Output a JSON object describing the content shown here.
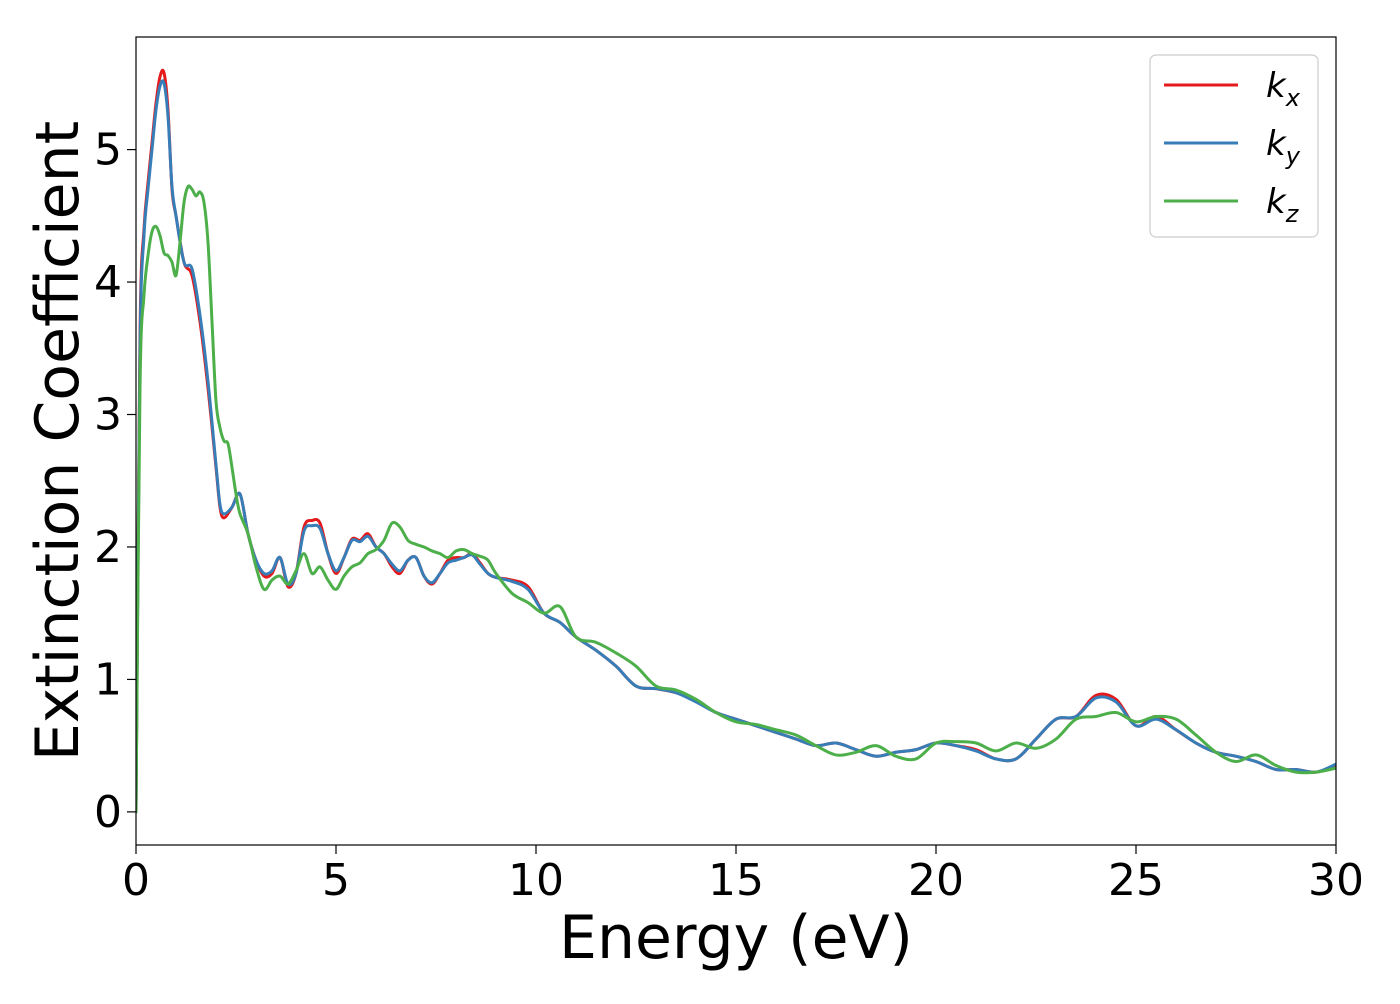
{
  "chart_data": {
    "type": "line",
    "title": "",
    "xlabel": "Energy (eV)",
    "ylabel": "Extinction Coefficient",
    "xlim": [
      0,
      30
    ],
    "ylim": [
      -0.25,
      5.85
    ],
    "xticks": [
      0,
      5,
      10,
      15,
      20,
      25,
      30
    ],
    "yticks": [
      0,
      1,
      2,
      3,
      4,
      5
    ],
    "grid": false,
    "legend_position": "top-right",
    "series": [
      {
        "name": "k",
        "subscript": "x",
        "color": "#e41a1c",
        "x": [
          0,
          0.1,
          0.2,
          0.3,
          0.4,
          0.5,
          0.6,
          0.7,
          0.8,
          0.9,
          1.0,
          1.2,
          1.4,
          1.6,
          1.8,
          2.0,
          2.1,
          2.2,
          2.4,
          2.6,
          2.8,
          3.0,
          3.2,
          3.4,
          3.6,
          3.8,
          4.0,
          4.2,
          4.4,
          4.6,
          4.8,
          5.0,
          5.2,
          5.4,
          5.6,
          5.8,
          6.0,
          6.2,
          6.4,
          6.6,
          6.8,
          7.0,
          7.2,
          7.4,
          7.6,
          7.8,
          8.0,
          8.2,
          8.4,
          8.6,
          8.8,
          9.0,
          9.4,
          9.8,
          10.2,
          10.6,
          11.0,
          11.5,
          12.0,
          12.5,
          13.0,
          13.5,
          14.0,
          14.5,
          15.0,
          15.5,
          16.0,
          16.5,
          17.0,
          17.5,
          18.0,
          18.5,
          19.0,
          19.5,
          20.0,
          20.5,
          21.0,
          21.5,
          22.0,
          22.5,
          23.0,
          23.5,
          24.0,
          24.5,
          25.0,
          25.5,
          26.0,
          26.5,
          27.0,
          27.5,
          28.0,
          28.5,
          29.0,
          29.5,
          30.0
        ],
        "y": [
          0.0,
          3.6,
          4.4,
          4.75,
          5.05,
          5.35,
          5.55,
          5.58,
          5.3,
          4.7,
          4.5,
          4.15,
          4.05,
          3.7,
          3.2,
          2.6,
          2.3,
          2.22,
          2.3,
          2.4,
          2.1,
          1.9,
          1.78,
          1.8,
          1.92,
          1.7,
          1.8,
          2.15,
          2.2,
          2.18,
          1.95,
          1.8,
          1.92,
          2.06,
          2.05,
          2.1,
          2.0,
          1.95,
          1.85,
          1.8,
          1.9,
          1.92,
          1.78,
          1.72,
          1.8,
          1.9,
          1.92,
          1.92,
          1.95,
          1.88,
          1.8,
          1.77,
          1.75,
          1.7,
          1.5,
          1.43,
          1.32,
          1.22,
          1.1,
          0.95,
          0.93,
          0.9,
          0.84,
          0.75,
          0.7,
          0.65,
          0.6,
          0.55,
          0.5,
          0.52,
          0.47,
          0.42,
          0.45,
          0.47,
          0.52,
          0.5,
          0.47,
          0.4,
          0.4,
          0.55,
          0.7,
          0.72,
          0.88,
          0.85,
          0.65,
          0.72,
          0.62,
          0.52,
          0.45,
          0.42,
          0.38,
          0.32,
          0.32,
          0.3,
          0.35
        ]
      },
      {
        "name": "k",
        "subscript": "y",
        "color": "#377eb8",
        "x": [
          0,
          0.1,
          0.2,
          0.3,
          0.4,
          0.5,
          0.6,
          0.7,
          0.8,
          0.9,
          1.0,
          1.2,
          1.4,
          1.6,
          1.8,
          2.0,
          2.1,
          2.2,
          2.4,
          2.6,
          2.8,
          3.0,
          3.2,
          3.4,
          3.6,
          3.8,
          4.0,
          4.2,
          4.4,
          4.6,
          4.8,
          5.0,
          5.2,
          5.4,
          5.6,
          5.8,
          6.0,
          6.2,
          6.4,
          6.6,
          6.8,
          7.0,
          7.2,
          7.4,
          7.6,
          7.8,
          8.0,
          8.2,
          8.4,
          8.6,
          8.8,
          9.0,
          9.4,
          9.8,
          10.2,
          10.6,
          11.0,
          11.5,
          12.0,
          12.5,
          13.0,
          13.5,
          14.0,
          14.5,
          15.0,
          15.5,
          16.0,
          16.5,
          17.0,
          17.5,
          18.0,
          18.5,
          19.0,
          19.5,
          20.0,
          20.5,
          21.0,
          21.5,
          22.0,
          22.5,
          23.0,
          23.5,
          24.0,
          24.5,
          25.0,
          25.5,
          26.0,
          26.5,
          27.0,
          27.5,
          28.0,
          28.5,
          29.0,
          29.5,
          30.0
        ],
        "y": [
          0.0,
          3.5,
          4.35,
          4.7,
          5.0,
          5.3,
          5.48,
          5.5,
          5.25,
          4.72,
          4.5,
          4.15,
          4.1,
          3.75,
          3.25,
          2.62,
          2.32,
          2.25,
          2.3,
          2.4,
          2.1,
          1.9,
          1.8,
          1.82,
          1.92,
          1.72,
          1.8,
          2.12,
          2.16,
          2.14,
          1.95,
          1.82,
          1.92,
          2.05,
          2.04,
          2.08,
          2.0,
          1.95,
          1.87,
          1.82,
          1.9,
          1.92,
          1.78,
          1.73,
          1.8,
          1.88,
          1.9,
          1.92,
          1.94,
          1.87,
          1.8,
          1.77,
          1.74,
          1.68,
          1.5,
          1.43,
          1.32,
          1.22,
          1.1,
          0.95,
          0.93,
          0.9,
          0.83,
          0.75,
          0.7,
          0.65,
          0.6,
          0.55,
          0.5,
          0.52,
          0.47,
          0.42,
          0.45,
          0.47,
          0.52,
          0.5,
          0.46,
          0.4,
          0.4,
          0.55,
          0.7,
          0.72,
          0.86,
          0.83,
          0.65,
          0.7,
          0.62,
          0.52,
          0.45,
          0.42,
          0.38,
          0.32,
          0.32,
          0.3,
          0.36
        ]
      },
      {
        "name": "k",
        "subscript": "z",
        "color": "#4daf4a",
        "x": [
          0,
          0.1,
          0.2,
          0.3,
          0.4,
          0.5,
          0.6,
          0.7,
          0.8,
          0.9,
          1.0,
          1.1,
          1.2,
          1.3,
          1.4,
          1.5,
          1.6,
          1.7,
          1.8,
          1.9,
          2.0,
          2.1,
          2.2,
          2.3,
          2.4,
          2.5,
          2.6,
          2.8,
          3.0,
          3.2,
          3.4,
          3.6,
          3.8,
          4.0,
          4.2,
          4.4,
          4.6,
          4.8,
          5.0,
          5.2,
          5.4,
          5.6,
          5.8,
          6.0,
          6.2,
          6.4,
          6.6,
          6.8,
          7.0,
          7.2,
          7.4,
          7.6,
          7.8,
          8.0,
          8.2,
          8.4,
          8.6,
          8.8,
          9.0,
          9.4,
          9.8,
          10.2,
          10.6,
          11.0,
          11.5,
          12.0,
          12.5,
          13.0,
          13.5,
          14.0,
          14.5,
          15.0,
          15.5,
          16.0,
          16.5,
          17.0,
          17.5,
          18.0,
          18.5,
          19.0,
          19.5,
          20.0,
          20.5,
          21.0,
          21.5,
          22.0,
          22.5,
          23.0,
          23.5,
          24.0,
          24.5,
          25.0,
          25.5,
          26.0,
          26.5,
          27.0,
          27.5,
          28.0,
          28.5,
          29.0,
          29.5,
          30.0
        ],
        "y": [
          0.0,
          3.2,
          3.9,
          4.2,
          4.38,
          4.42,
          4.35,
          4.22,
          4.2,
          4.15,
          4.05,
          4.3,
          4.6,
          4.72,
          4.7,
          4.65,
          4.68,
          4.6,
          4.3,
          3.7,
          3.1,
          2.9,
          2.8,
          2.78,
          2.6,
          2.4,
          2.25,
          2.1,
          1.85,
          1.68,
          1.75,
          1.78,
          1.72,
          1.82,
          1.95,
          1.8,
          1.85,
          1.75,
          1.68,
          1.78,
          1.85,
          1.88,
          1.95,
          1.98,
          2.05,
          2.18,
          2.15,
          2.05,
          2.02,
          2.0,
          1.97,
          1.95,
          1.92,
          1.97,
          1.98,
          1.95,
          1.93,
          1.9,
          1.8,
          1.65,
          1.58,
          1.5,
          1.55,
          1.32,
          1.28,
          1.2,
          1.1,
          0.95,
          0.92,
          0.85,
          0.75,
          0.68,
          0.66,
          0.62,
          0.58,
          0.5,
          0.43,
          0.45,
          0.5,
          0.42,
          0.4,
          0.52,
          0.53,
          0.52,
          0.46,
          0.52,
          0.48,
          0.55,
          0.7,
          0.72,
          0.75,
          0.68,
          0.72,
          0.7,
          0.58,
          0.45,
          0.38,
          0.43,
          0.35,
          0.3,
          0.3,
          0.33
        ]
      }
    ]
  }
}
